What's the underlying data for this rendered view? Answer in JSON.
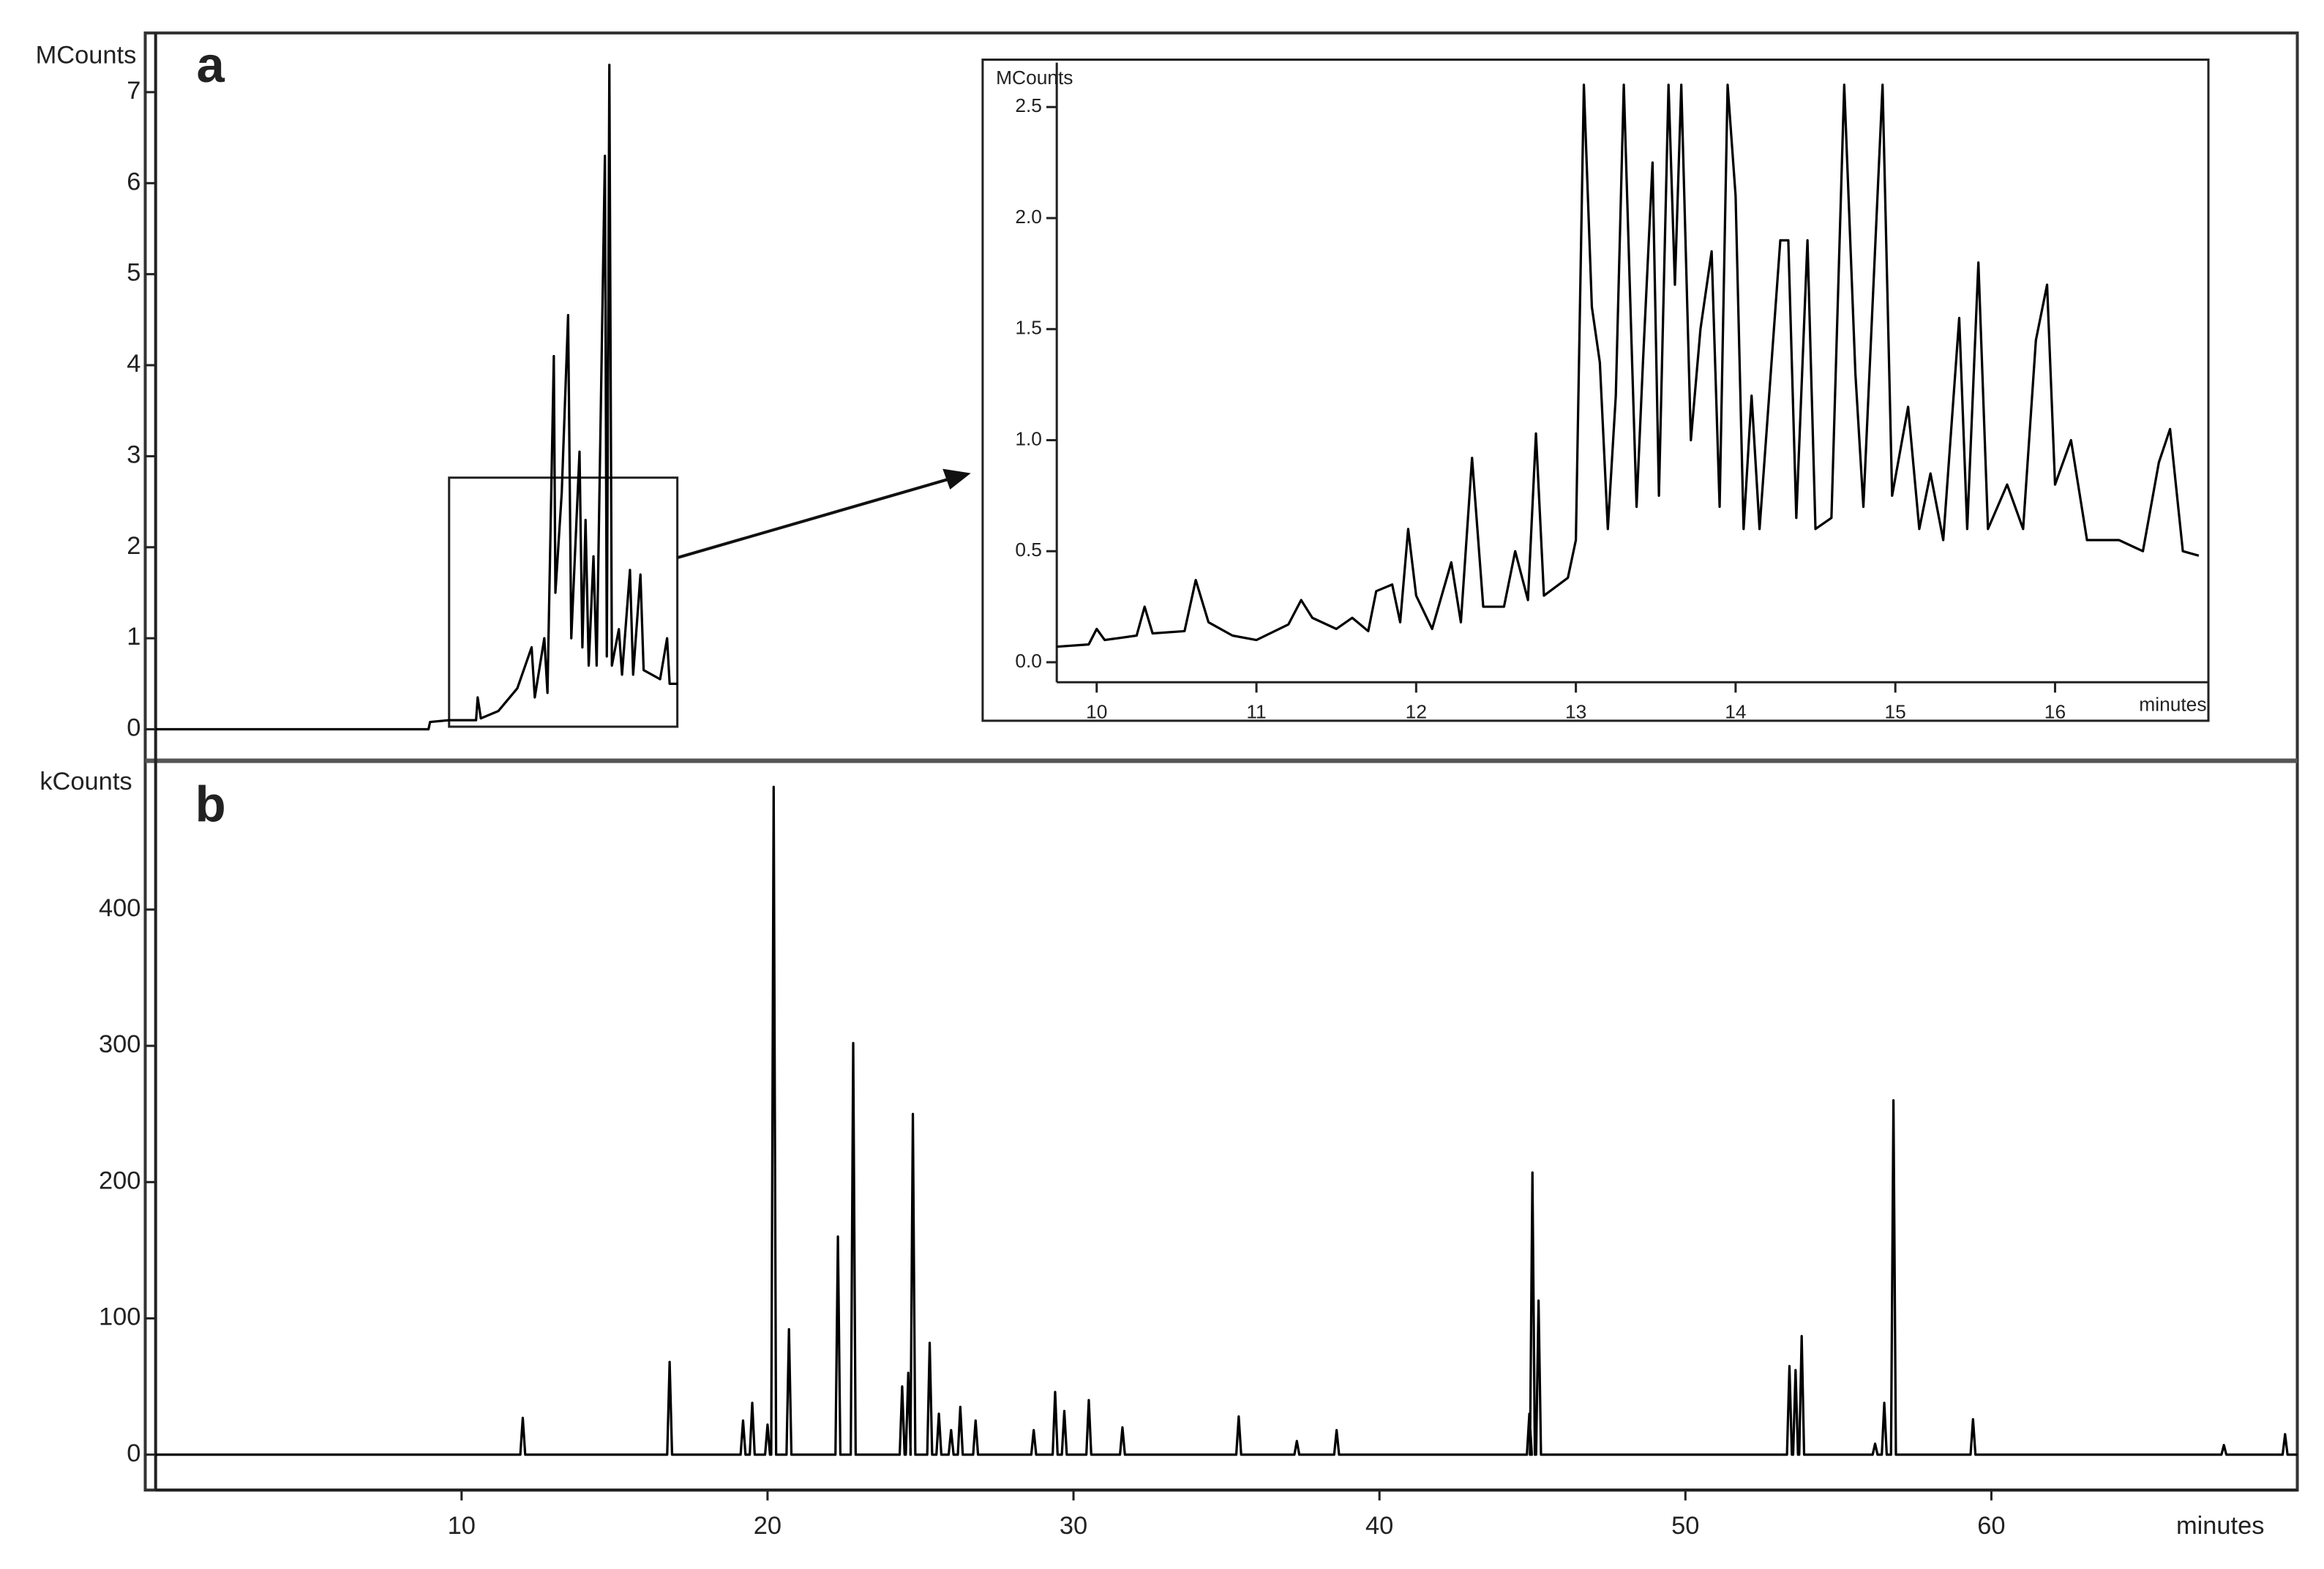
{
  "chart_data": [
    {
      "type": "line",
      "panel_label": "a",
      "y_label": "MCounts",
      "color": "#000000",
      "xlim": [
        0.5,
        68
      ],
      "ylim": [
        -0.33,
        7.65
      ],
      "yticks": [
        0,
        1,
        2,
        3,
        4,
        5,
        6,
        7
      ],
      "x": [
        0.5,
        9.1,
        9.15,
        9.75,
        10.6,
        10.65,
        10.75,
        11.3,
        11.9,
        12.35,
        12.45,
        12.75,
        12.85,
        13.05,
        13.1,
        13.3,
        13.5,
        13.6,
        13.86,
        13.95,
        14.05,
        14.15,
        14.3,
        14.4,
        14.66,
        14.72,
        14.8,
        14.88,
        15.1,
        15.2,
        15.45,
        15.55,
        15.78,
        15.88,
        16.4,
        16.62,
        16.7,
        16.96
      ],
      "values": [
        0,
        0,
        0.08,
        0.1,
        0.1,
        0.35,
        0.12,
        0.2,
        0.45,
        0.9,
        0.35,
        1.0,
        0.4,
        4.1,
        1.5,
        2.6,
        4.55,
        1.0,
        3.05,
        0.9,
        2.3,
        0.7,
        1.9,
        0.7,
        6.3,
        0.8,
        7.3,
        0.7,
        1.1,
        0.6,
        1.75,
        0.6,
        1.7,
        0.65,
        0.55,
        1.0,
        0.5,
        0.5
      ]
    },
    {
      "type": "line",
      "y_label": "MCounts",
      "x_label": "minutes",
      "color": "#000000",
      "xlim": [
        9.75,
        16.96
      ],
      "ylim": [
        -0.09,
        2.7
      ],
      "xticks": [
        10,
        11,
        12,
        13,
        14,
        15,
        16
      ],
      "yticks": [
        {
          "value": 0,
          "label": "0.0"
        },
        0.5,
        {
          "value": 1,
          "label": "1.0"
        },
        1.5,
        {
          "value": 2,
          "label": "2.0"
        },
        2.5
      ],
      "x": [
        9.75,
        9.95,
        10.0,
        10.05,
        10.25,
        10.3,
        10.35,
        10.55,
        10.62,
        10.7,
        10.85,
        11.0,
        11.2,
        11.28,
        11.35,
        11.5,
        11.6,
        11.7,
        11.75,
        11.85,
        11.9,
        11.95,
        12.0,
        12.1,
        12.22,
        12.28,
        12.35,
        12.42,
        12.55,
        12.62,
        12.7,
        12.75,
        12.8,
        12.95,
        13.0,
        13.05,
        13.1,
        13.15,
        13.2,
        13.25,
        13.3,
        13.35,
        13.38,
        13.42,
        13.48,
        13.52,
        13.58,
        13.62,
        13.66,
        13.72,
        13.78,
        13.85,
        13.9,
        13.95,
        14.0,
        14.05,
        14.1,
        14.15,
        14.2,
        14.28,
        14.33,
        14.38,
        14.45,
        14.5,
        14.6,
        14.68,
        14.75,
        14.8,
        14.92,
        14.98,
        15.08,
        15.15,
        15.22,
        15.3,
        15.4,
        15.45,
        15.52,
        15.58,
        15.7,
        15.8,
        15.88,
        15.95,
        16.0,
        16.1,
        16.2,
        16.4,
        16.55,
        16.65,
        16.72,
        16.8,
        16.9
      ],
      "values": [
        0.07,
        0.08,
        0.15,
        0.1,
        0.12,
        0.25,
        0.13,
        0.14,
        0.37,
        0.18,
        0.12,
        0.1,
        0.17,
        0.28,
        0.2,
        0.15,
        0.2,
        0.14,
        0.32,
        0.35,
        0.18,
        0.6,
        0.3,
        0.15,
        0.45,
        0.18,
        0.92,
        0.25,
        0.25,
        0.5,
        0.28,
        1.03,
        0.3,
        0.38,
        0.55,
        2.6,
        1.6,
        1.35,
        0.6,
        1.2,
        2.6,
        1.4,
        0.7,
        1.35,
        2.25,
        0.75,
        2.6,
        1.7,
        2.6,
        1.0,
        1.5,
        1.85,
        0.7,
        2.6,
        2.1,
        0.6,
        1.2,
        0.6,
        1.1,
        1.9,
        1.9,
        0.65,
        1.9,
        0.6,
        0.65,
        2.6,
        1.3,
        0.7,
        2.6,
        0.75,
        1.15,
        0.6,
        0.85,
        0.55,
        1.55,
        0.6,
        1.8,
        0.6,
        0.8,
        0.6,
        1.45,
        1.7,
        0.8,
        1.0,
        0.55,
        0.55,
        0.5,
        0.9,
        1.05,
        0.5,
        0.48
      ]
    },
    {
      "type": "line",
      "panel_label": "b",
      "y_label": "kCounts",
      "x_label": "minutes",
      "color": "#000000",
      "xlim": [
        0,
        70
      ],
      "ylim": [
        -26,
        507
      ],
      "xticks": [
        10,
        20,
        30,
        40,
        50,
        60
      ],
      "yticks": [
        0,
        100,
        200,
        300,
        400
      ],
      "x": [
        0,
        11.92,
        12.0,
        12.08,
        16.72,
        16.8,
        16.88,
        19.12,
        19.2,
        19.28,
        19.42,
        19.5,
        19.58,
        19.92,
        20.0,
        20.08,
        20.12,
        20.2,
        20.28,
        20.62,
        20.7,
        20.78,
        22.22,
        22.3,
        22.38,
        22.72,
        22.8,
        22.88,
        24.32,
        24.4,
        24.48,
        24.52,
        24.6,
        24.68,
        24.67,
        24.75,
        24.83,
        25.22,
        25.3,
        25.38,
        25.52,
        25.6,
        25.68,
        25.92,
        26.0,
        26.08,
        26.22,
        26.3,
        26.38,
        26.72,
        26.8,
        26.88,
        28.62,
        28.7,
        28.78,
        29.32,
        29.4,
        29.48,
        29.62,
        29.7,
        29.78,
        30.42,
        30.5,
        30.58,
        31.52,
        31.6,
        31.68,
        35.32,
        35.4,
        35.48,
        37.22,
        37.3,
        37.38,
        38.52,
        38.6,
        38.68,
        44.82,
        44.9,
        44.98,
        44.92,
        45.0,
        45.08,
        45.12,
        45.2,
        45.28,
        53.32,
        53.4,
        53.48,
        53.52,
        53.6,
        53.68,
        53.72,
        53.8,
        53.88,
        56.12,
        56.2,
        56.28,
        56.42,
        56.5,
        56.58,
        56.72,
        56.8,
        56.88,
        59.32,
        59.4,
        59.48,
        67.52,
        67.6,
        67.68,
        69.52,
        69.6,
        69.68,
        70
      ],
      "values": [
        0,
        0,
        27,
        0,
        0,
        68,
        0,
        0,
        25,
        0,
        0,
        38,
        0,
        0,
        22,
        0,
        0,
        490,
        0,
        0,
        92,
        0,
        0,
        160,
        0,
        0,
        302,
        0,
        0,
        50,
        0,
        0,
        60,
        0,
        0,
        250,
        0,
        0,
        82,
        0,
        0,
        30,
        0,
        0,
        18,
        0,
        0,
        35,
        0,
        0,
        25,
        0,
        0,
        18,
        0,
        0,
        46,
        0,
        0,
        32,
        0,
        0,
        40,
        0,
        0,
        20,
        0,
        0,
        28,
        0,
        0,
        10,
        0,
        0,
        18,
        0,
        0,
        30,
        0,
        0,
        207,
        0,
        0,
        113,
        0,
        0,
        65,
        0,
        0,
        62,
        0,
        0,
        87,
        0,
        0,
        8,
        0,
        0,
        38,
        0,
        0,
        260,
        0,
        0,
        26,
        0,
        0,
        7,
        0,
        0,
        15,
        0,
        0
      ]
    }
  ]
}
